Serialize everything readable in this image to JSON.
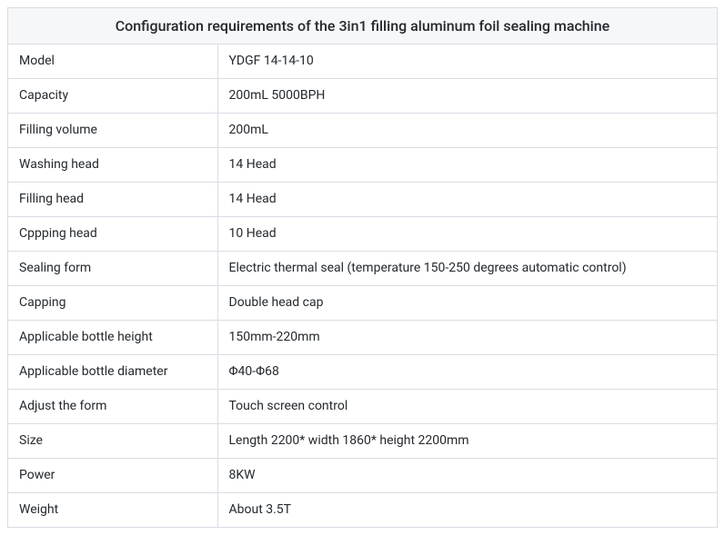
{
  "table": {
    "title": "Configuration requirements of the 3in1 filling aluminum foil sealing machine",
    "title_fontsize": 16,
    "cell_fontsize": 14,
    "background_color": "#ffffff",
    "header_background": "#f6f7f9",
    "border_color": "#d8dce3",
    "text_color": "#24292e",
    "label_column_width": 230,
    "rows": [
      {
        "label": "Model",
        "value": "YDGF 14-14-10"
      },
      {
        "label": "Capacity",
        "value": "200mL 5000BPH"
      },
      {
        "label": "Filling volume",
        "value": "200mL"
      },
      {
        "label": "Washing head",
        "value": "14 Head"
      },
      {
        "label": "Filling head",
        "value": "14 Head"
      },
      {
        "label": "Cppping head",
        "value": "10 Head"
      },
      {
        "label": "Sealing form",
        "value": "Electric thermal seal (temperature 150-250 degrees automatic control)"
      },
      {
        "label": "Capping",
        "value": "Double head cap"
      },
      {
        "label": "Applicable bottle height",
        "value": "150mm-220mm"
      },
      {
        "label": "Applicable bottle diameter",
        "value": "Φ40-Φ68"
      },
      {
        "label": "Adjust the form",
        "value": "Touch screen control"
      },
      {
        "label": "Size",
        "value": "Length 2200* width 1860* height 2200mm"
      },
      {
        "label": "Power",
        "value": "8KW"
      },
      {
        "label": "Weight",
        "value": "About 3.5T"
      }
    ]
  }
}
